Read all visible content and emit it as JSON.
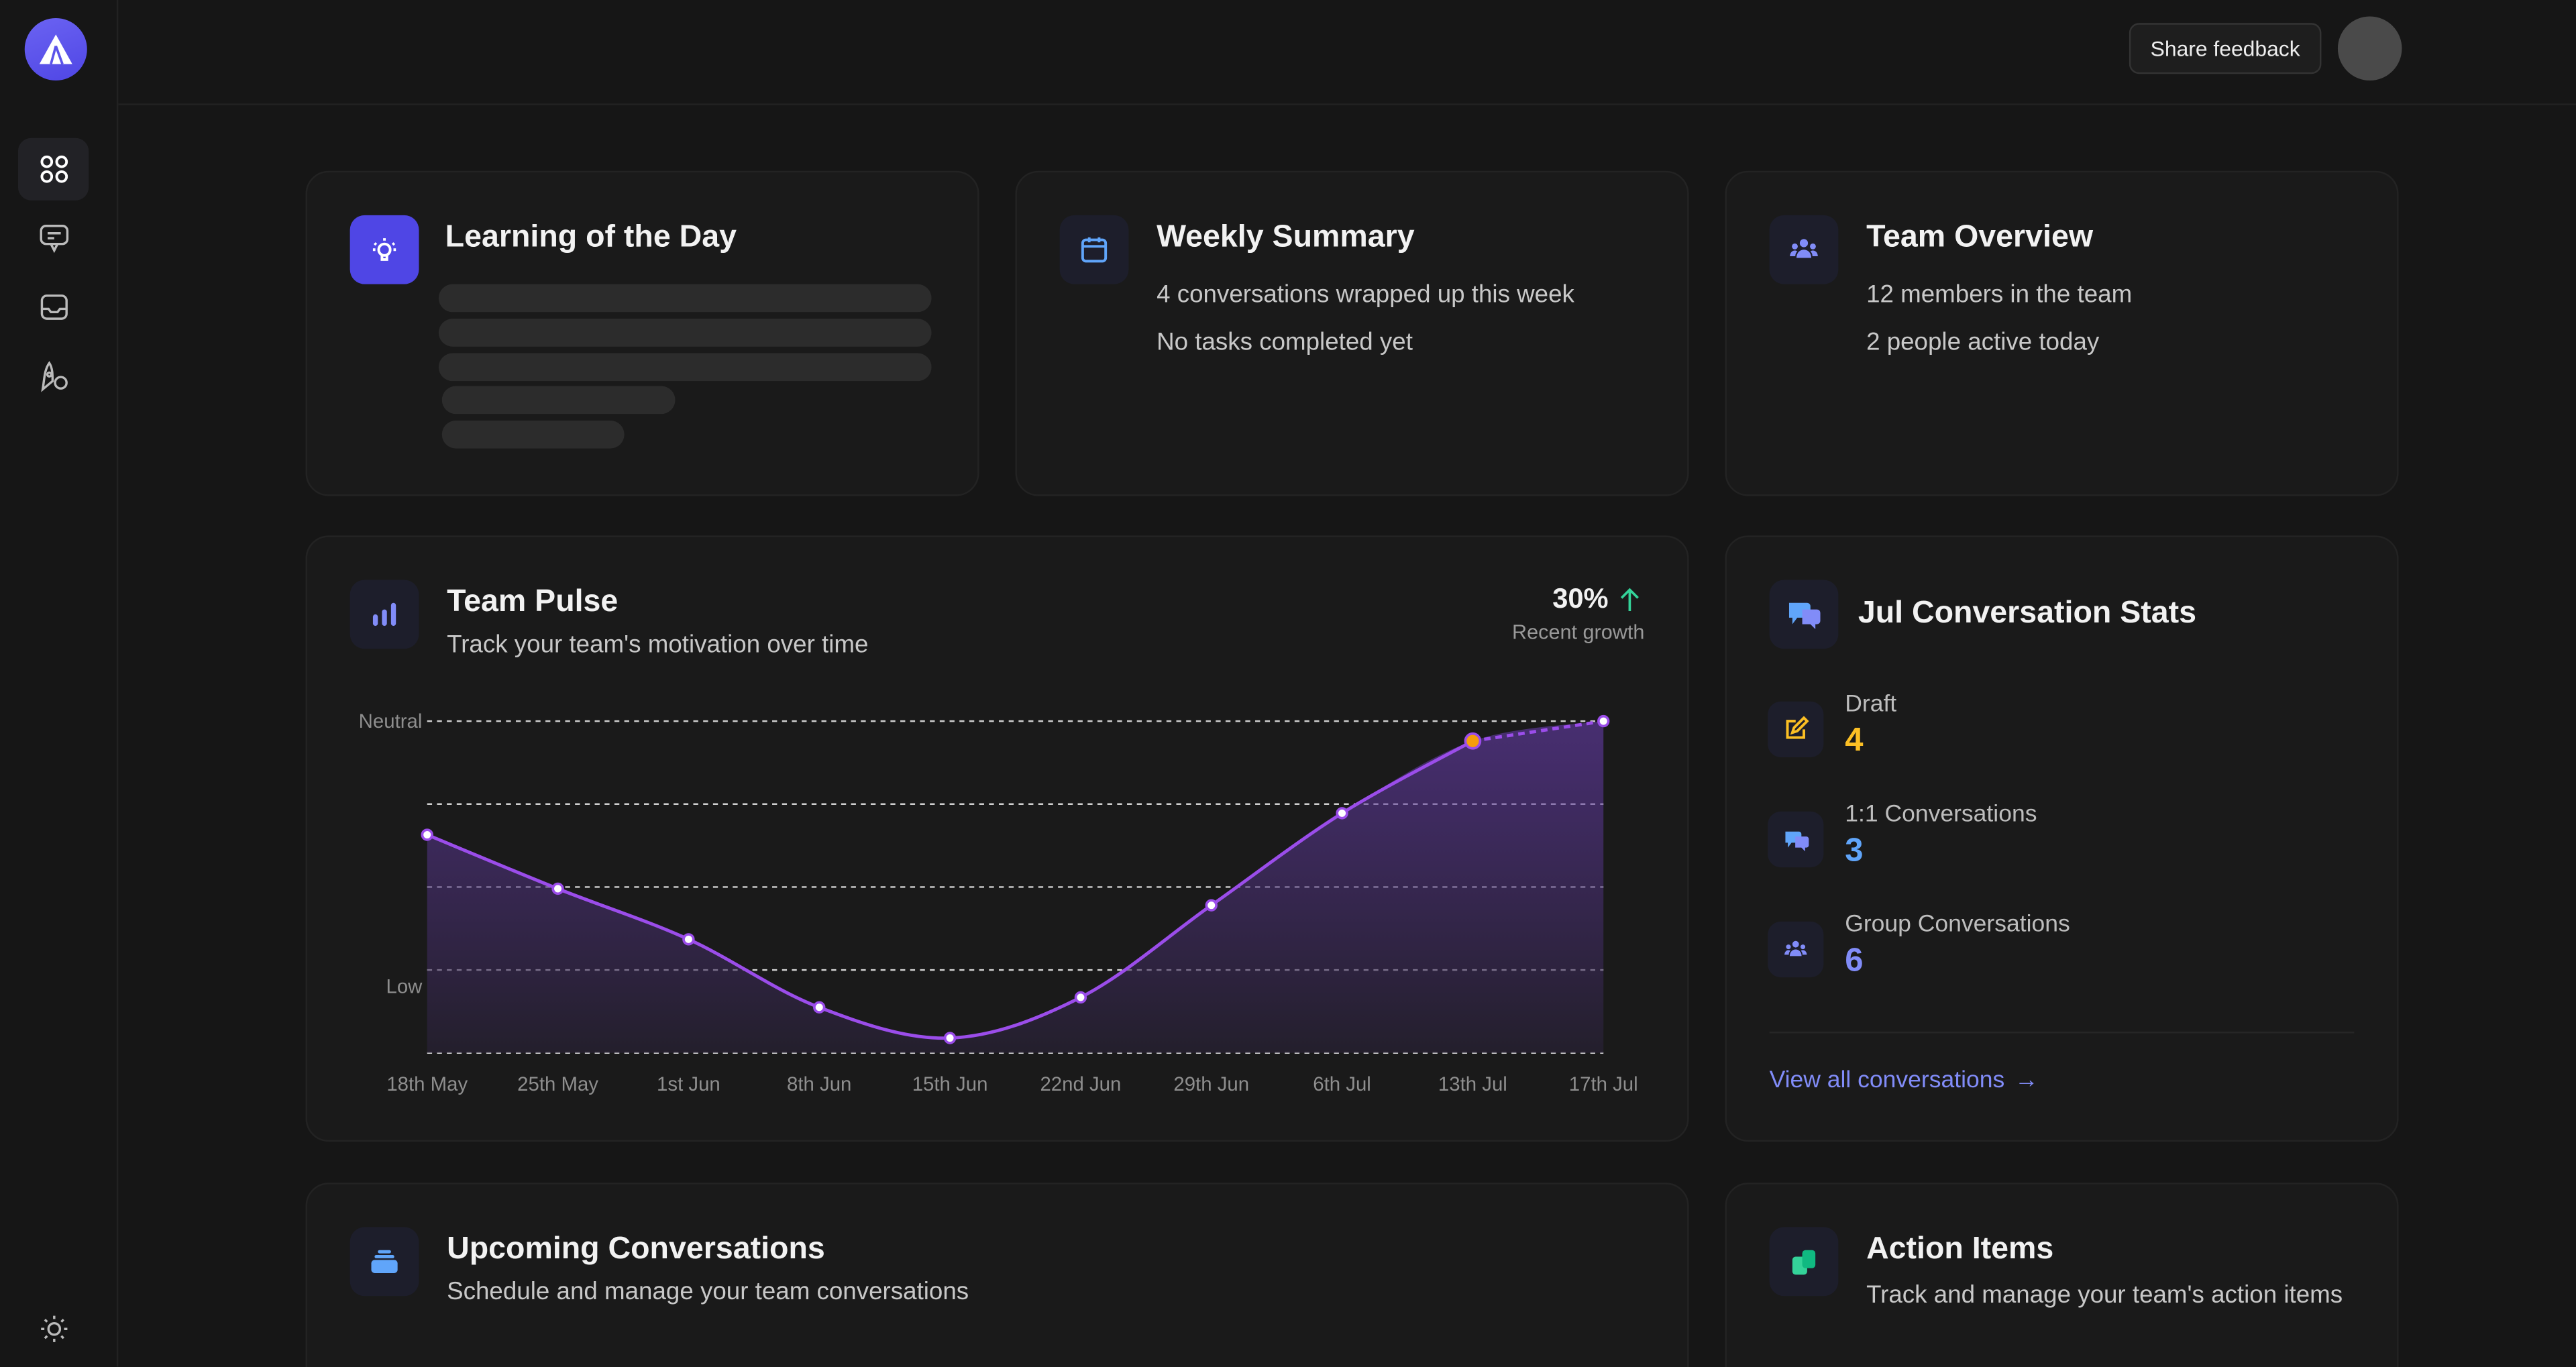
{
  "sidebar": {
    "items": [
      {
        "name": "dashboard",
        "icon": "grid-icon"
      },
      {
        "name": "conversations",
        "icon": "chat-icon"
      },
      {
        "name": "inbox",
        "icon": "inbox-icon"
      },
      {
        "name": "growth",
        "icon": "rocket-icon"
      }
    ],
    "theme_icon": "sun-icon"
  },
  "topbar": {
    "feedback_label": "Share feedback"
  },
  "learning": {
    "title": "Learning of the Day"
  },
  "weekly": {
    "title": "Weekly Summary",
    "line1": "4 conversations wrapped up this week",
    "line2": "No tasks completed yet"
  },
  "team": {
    "title": "Team Overview",
    "line1": "12 members in the team",
    "line2": "2 people active today"
  },
  "pulse": {
    "title": "Team Pulse",
    "subtitle": "Track your team's motivation over time",
    "growth": "30%",
    "growth_label": "Recent growth",
    "growth_color": "#34d399"
  },
  "chart_data": {
    "type": "area",
    "categories": [
      "18th May",
      "25th May",
      "1st Jun",
      "8th Jun",
      "15th Jun",
      "22nd Jun",
      "29th Jun",
      "6th Jul",
      "13th Jul",
      "17th Jul"
    ],
    "values": [
      2.63,
      1.98,
      1.37,
      0.55,
      0.18,
      0.67,
      1.78,
      2.89,
      3.76,
      4.0
    ],
    "y_labels": [
      {
        "label": "Neutral",
        "value": 4
      },
      {
        "label": "Low",
        "value": 0.8
      }
    ],
    "ylim": [
      0,
      4
    ],
    "grid": true,
    "line_color": "#9b4dea",
    "highlight_color": "#f59e0b",
    "highlight_index": 8,
    "projected_from_index": 8
  },
  "stats": {
    "title": "Jul Conversation Stats",
    "items": [
      {
        "label": "Draft",
        "value": "4",
        "color": "#fbbf24",
        "icon": "edit-icon"
      },
      {
        "label": "1:1 Conversations",
        "value": "3",
        "color": "#60a5fa",
        "icon": "chat-bubbles-icon"
      },
      {
        "label": "Group Conversations",
        "value": "6",
        "color": "#818cf8",
        "icon": "group-icon"
      }
    ],
    "link": "View all conversations",
    "link_color": "#818cf8"
  },
  "upcoming": {
    "title": "Upcoming Conversations",
    "subtitle": "Schedule and manage your team conversations"
  },
  "actions": {
    "title": "Action Items",
    "subtitle": "Track and manage your team's action items"
  }
}
